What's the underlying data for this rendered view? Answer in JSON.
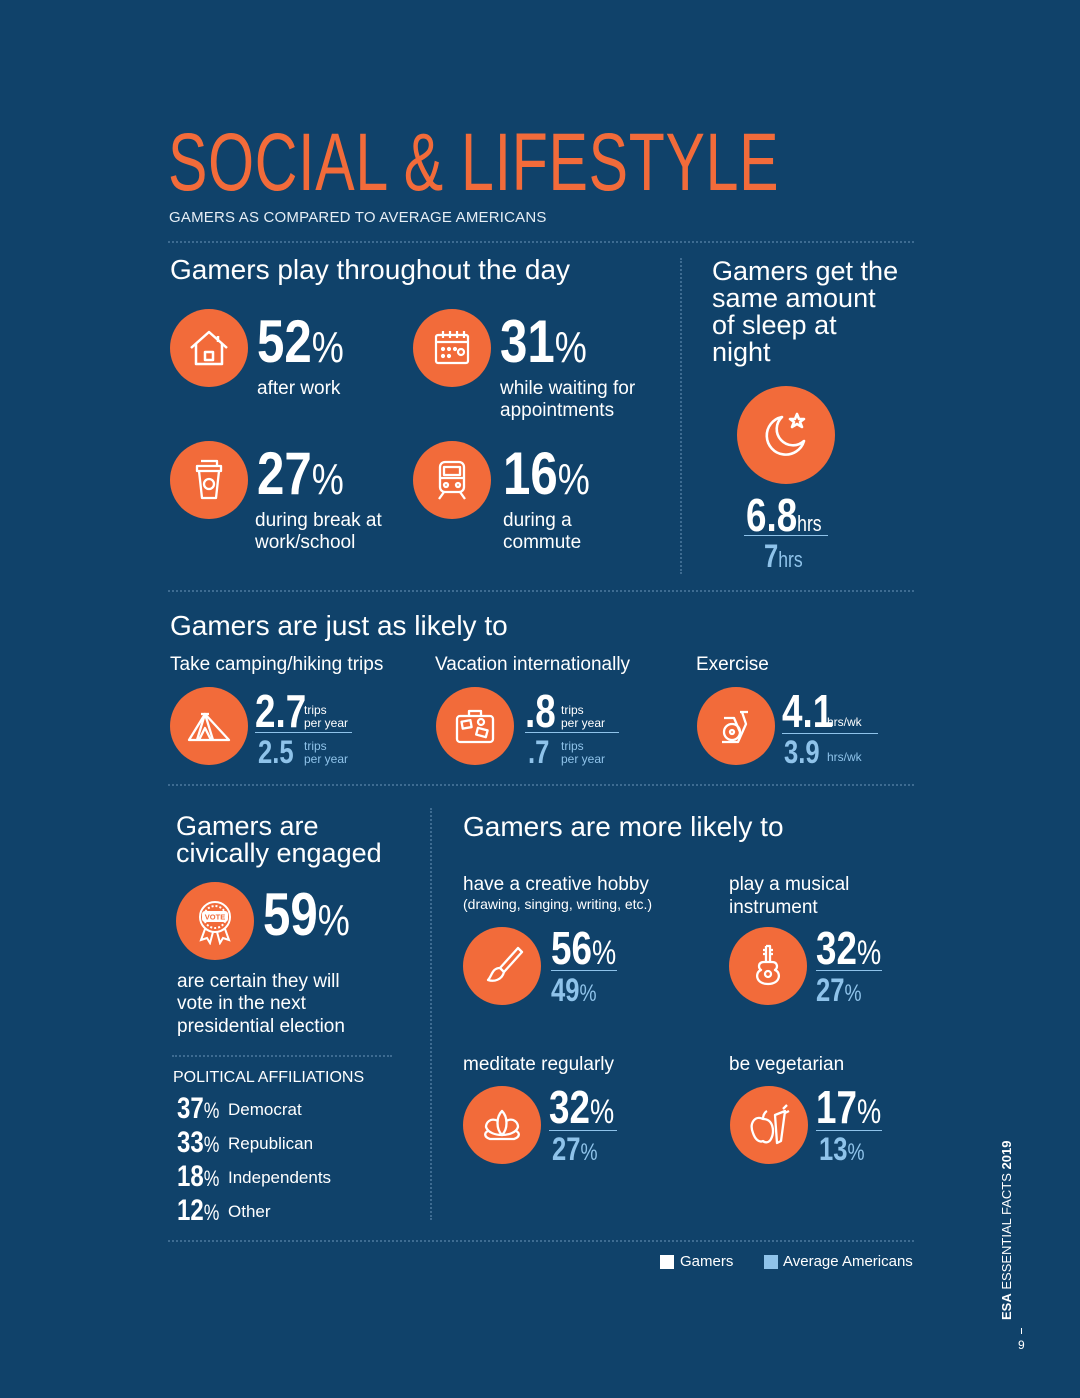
{
  "title": "SOCIAL & LIFESTYLE",
  "subtitle": "GAMERS AS COMPARED TO AVERAGE AMERICANS",
  "play_day": {
    "heading": "Gamers play throughout the day",
    "items": [
      {
        "value": "52",
        "pct": "%",
        "label": "after work",
        "icon": "house-icon"
      },
      {
        "value": "31",
        "pct": "%",
        "label": "while waiting for appointments",
        "icon": "calendar-icon"
      },
      {
        "value": "27",
        "pct": "%",
        "label": "during break at work/school",
        "icon": "coffee-cup-icon"
      },
      {
        "value": "16",
        "pct": "%",
        "label": "during a commute",
        "icon": "train-icon"
      }
    ]
  },
  "sleep": {
    "heading": "Gamers get the same amount of sleep at night",
    "gamers_value": "6.8",
    "gamers_unit": "hrs",
    "avg_value": "7",
    "avg_unit": "hrs",
    "icon": "moon-star-icon"
  },
  "likely": {
    "heading": "Gamers are just as likely to",
    "items": [
      {
        "label": "Take camping/hiking trips",
        "gamers": "2.7",
        "avg": "2.5",
        "unit_top": "trips",
        "unit_bottom": "per year",
        "icon": "tent-icon"
      },
      {
        "label": "Vacation internationally",
        "gamers": ".8",
        "avg": ".7",
        "unit_top": "trips",
        "unit_bottom": "per year",
        "icon": "suitcase-icon"
      },
      {
        "label": "Exercise",
        "gamers": "4.1",
        "avg": "3.9",
        "unit_top": "hrs/wk",
        "unit_bottom": "",
        "icon": "exercise-bike-icon"
      }
    ]
  },
  "civic": {
    "heading_line1": "Gamers are",
    "heading_line2": "civically engaged",
    "value": "59",
    "pct": "%",
    "label": "are certain they will vote in the next presidential election",
    "icon": "vote-badge-icon",
    "affiliations_title": "POLITICAL AFFILIATIONS",
    "affiliations": [
      {
        "value": "37",
        "pct": "%",
        "label": "Democrat"
      },
      {
        "value": "33",
        "pct": "%",
        "label": "Republican"
      },
      {
        "value": "18",
        "pct": "%",
        "label": "Independents"
      },
      {
        "value": "12",
        "pct": "%",
        "label": "Other"
      }
    ]
  },
  "more_likely": {
    "heading": "Gamers are more likely to",
    "items": [
      {
        "label": "have a creative hobby",
        "sublabel": "(drawing, singing, writing, etc.)",
        "gamers": "56",
        "avg": "49",
        "pct": "%",
        "icon": "paintbrush-icon"
      },
      {
        "label": "play a musical instrument",
        "sublabel": "",
        "gamers": "32",
        "avg": "27",
        "pct": "%",
        "icon": "guitar-icon"
      },
      {
        "label": "meditate regularly",
        "sublabel": "",
        "gamers": "32",
        "avg": "27",
        "pct": "%",
        "icon": "lotus-icon"
      },
      {
        "label": "be vegetarian",
        "sublabel": "",
        "gamers": "17",
        "avg": "13",
        "pct": "%",
        "icon": "apple-carrot-icon"
      }
    ]
  },
  "legend": {
    "gamers": "Gamers",
    "average": "Average Americans",
    "gamers_color": "#ffffff",
    "average_color": "#8fc3ea"
  },
  "footer": {
    "vertical_text_bold": "ESA",
    "vertical_text": "ESSENTIAL FACTS",
    "vertical_year": "2019",
    "page_number": "9"
  },
  "colors": {
    "background": "#10426a",
    "accent": "#f26b3a",
    "average": "#8fc3ea"
  }
}
